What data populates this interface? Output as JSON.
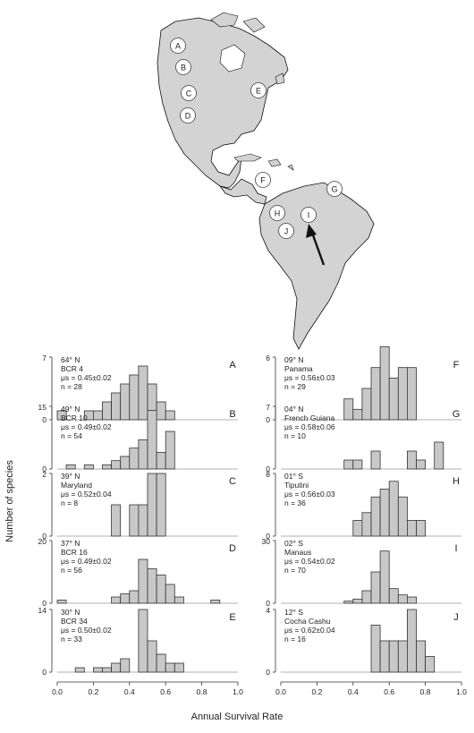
{
  "map": {
    "site_markers": [
      "A",
      "B",
      "C",
      "D",
      "E",
      "F",
      "G",
      "H",
      "I",
      "J"
    ],
    "land_color": "#d3d3d3",
    "coast_color": "#111111",
    "arrow": "arrow pointing to site I"
  },
  "y_axis_label": "Number of species",
  "x_axis_label": "Annual Survival Rate",
  "x_ticks": [
    "0.0",
    "0.2",
    "0.4",
    "0.6",
    "0.8",
    "1.0"
  ],
  "bar_color": "#c8c8c8",
  "chart_data": [
    {
      "type": "bar",
      "letter": "A",
      "lat": "64° N",
      "site": "BCR 4",
      "mu": "μs = 0.45±0.02",
      "n": "n = 28",
      "ymax": 7,
      "ytop": "7",
      "xlim": [
        0,
        1
      ],
      "bin_width": 0.05,
      "bins": [
        0.0,
        0.05,
        0.15,
        0.2,
        0.25,
        0.3,
        0.35,
        0.4,
        0.45,
        0.5,
        0.55,
        0.6
      ],
      "values": [
        1,
        0,
        1,
        1,
        2,
        3,
        4,
        5,
        6,
        4,
        2,
        1
      ]
    },
    {
      "type": "bar",
      "letter": "B",
      "lat": "49° N",
      "site": "BCR 10",
      "mu": "μs = 0.49±0.02",
      "n": "n = 54",
      "ymax": 15,
      "ytop": "15",
      "xlim": [
        0,
        1
      ],
      "bin_width": 0.05,
      "bins": [
        0.05,
        0.15,
        0.25,
        0.3,
        0.35,
        0.4,
        0.45,
        0.5,
        0.55,
        0.6
      ],
      "values": [
        1,
        1,
        1,
        2,
        3,
        5,
        7,
        14,
        4,
        9
      ]
    },
    {
      "type": "bar",
      "letter": "C",
      "lat": "39° N",
      "site": "Maryland",
      "mu": "μs = 0.52±0.04",
      "n": "n = 8",
      "ymax": 2,
      "ytop": "2",
      "xlim": [
        0,
        1
      ],
      "bin_width": 0.05,
      "bins": [
        0.3,
        0.4,
        0.45,
        0.5,
        0.55
      ],
      "values": [
        1,
        1,
        1,
        2,
        2
      ]
    },
    {
      "type": "bar",
      "letter": "D",
      "lat": "37° N",
      "site": "BCR 16",
      "mu": "μs = 0.49±0.02",
      "n": "n = 56",
      "ymax": 20,
      "ytop": "20",
      "xlim": [
        0,
        1
      ],
      "bin_width": 0.05,
      "bins": [
        0.0,
        0.3,
        0.35,
        0.4,
        0.45,
        0.5,
        0.55,
        0.6,
        0.65,
        0.85
      ],
      "values": [
        1,
        2,
        3,
        4,
        14,
        11,
        9,
        6,
        2,
        1
      ]
    },
    {
      "type": "bar",
      "letter": "E",
      "lat": "30° N",
      "site": "BCR 34",
      "mu": "μs = 0.50±0.02",
      "n": "n = 33",
      "ymax": 14,
      "ytop": "14",
      "xlim": [
        0,
        1
      ],
      "bin_width": 0.05,
      "bins": [
        0.1,
        0.2,
        0.25,
        0.3,
        0.35,
        0.45,
        0.5,
        0.55,
        0.6,
        0.65
      ],
      "values": [
        1,
        1,
        1,
        2,
        3,
        14,
        7,
        4,
        2,
        2
      ]
    },
    {
      "type": "bar",
      "letter": "F",
      "lat": "09° N",
      "site": "Panama",
      "mu": "μs = 0.56±0.03",
      "n": "n = 29",
      "ymax": 6,
      "ytop": "6",
      "xlim": [
        0,
        1
      ],
      "bin_width": 0.05,
      "bins": [
        0.35,
        0.4,
        0.45,
        0.5,
        0.55,
        0.6,
        0.65,
        0.7
      ],
      "values": [
        2,
        1,
        3,
        5,
        7,
        4,
        5,
        5
      ]
    },
    {
      "type": "bar",
      "letter": "G",
      "lat": "04° N",
      "site": "French Guiana",
      "mu": "μs = 0.58±0.06",
      "n": "n = 10",
      "ymax": 7,
      "ytop": "7",
      "xlim": [
        0,
        1
      ],
      "bin_width": 0.05,
      "bins": [
        0.35,
        0.4,
        0.5,
        0.7,
        0.75,
        0.85
      ],
      "values": [
        1,
        1,
        2,
        2,
        1,
        3
      ]
    },
    {
      "type": "bar",
      "letter": "H",
      "lat": "01° S",
      "site": "Tiputini",
      "mu": "μs = 0.56±0.03",
      "n": "n = 36",
      "ymax": 8,
      "ytop": "8",
      "xlim": [
        0,
        1
      ],
      "bin_width": 0.05,
      "bins": [
        0.4,
        0.45,
        0.5,
        0.55,
        0.6,
        0.65,
        0.7,
        0.75
      ],
      "values": [
        2,
        3,
        5,
        6,
        7,
        5,
        2,
        2
      ]
    },
    {
      "type": "bar",
      "letter": "I",
      "lat": "02° S",
      "site": "Manaus",
      "mu": "μs = 0.54±0.02",
      "n": "n = 70",
      "ymax": 30,
      "ytop": "30",
      "xlim": [
        0,
        1
      ],
      "bin_width": 0.05,
      "bins": [
        0.35,
        0.4,
        0.45,
        0.5,
        0.55,
        0.6,
        0.65,
        0.7
      ],
      "values": [
        1,
        2,
        6,
        15,
        25,
        7,
        4,
        3
      ]
    },
    {
      "type": "bar",
      "letter": "J",
      "lat": "12° S",
      "site": "Cocha Cashu",
      "mu": "μs = 0.62±0.04",
      "n": "n = 16",
      "ymax": 4,
      "ytop": "4",
      "xlim": [
        0,
        1
      ],
      "bin_width": 0.05,
      "bins": [
        0.5,
        0.55,
        0.6,
        0.65,
        0.7,
        0.75,
        0.8
      ],
      "values": [
        3,
        2,
        2,
        2,
        4,
        2,
        1
      ]
    }
  ]
}
